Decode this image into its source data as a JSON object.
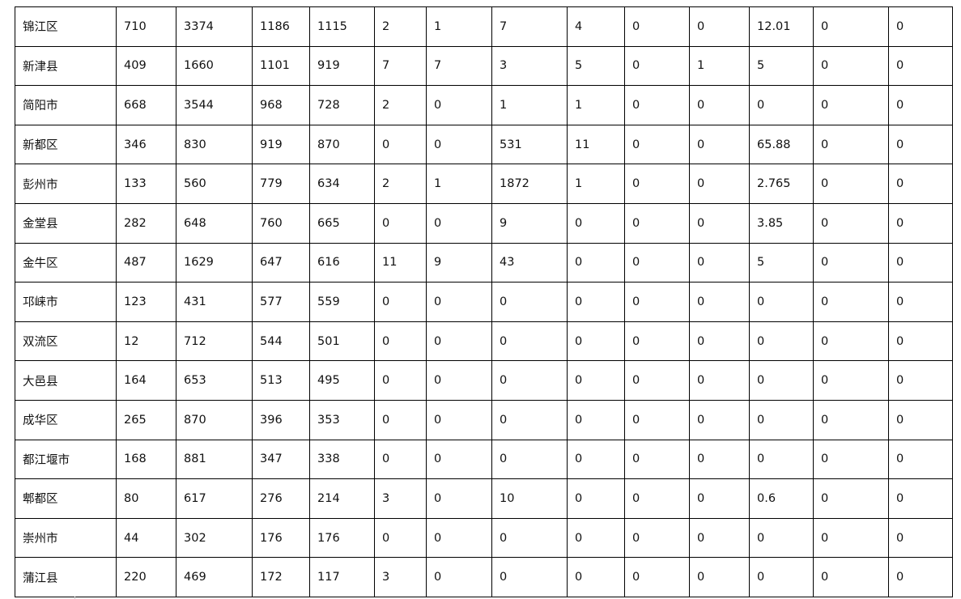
{
  "table": {
    "rows": [
      [
        "锦江区",
        "710",
        "3374",
        "1186",
        "1115",
        "2",
        "1",
        "7",
        "4",
        "0",
        "0",
        "12.01",
        "0",
        "0"
      ],
      [
        "新津县",
        "409",
        "1660",
        "1101",
        "919",
        "7",
        "7",
        "3",
        "5",
        "0",
        "1",
        "5",
        "0",
        "0"
      ],
      [
        "简阳市",
        "668",
        "3544",
        "968",
        "728",
        "2",
        "0",
        "1",
        "1",
        "0",
        "0",
        "0",
        "0",
        "0"
      ],
      [
        "新都区",
        "346",
        "830",
        "919",
        "870",
        "0",
        "0",
        "531",
        "11",
        "0",
        "0",
        "65.88",
        "0",
        "0"
      ],
      [
        "彭州市",
        "133",
        "560",
        "779",
        "634",
        "2",
        "1",
        "1872",
        "1",
        "0",
        "0",
        "2.765",
        "0",
        "0"
      ],
      [
        "金堂县",
        "282",
        "648",
        "760",
        "665",
        "0",
        "0",
        "9",
        "0",
        "0",
        "0",
        "3.85",
        "0",
        "0"
      ],
      [
        "金牛区",
        "487",
        "1629",
        "647",
        "616",
        "11",
        "9",
        "43",
        "0",
        "0",
        "0",
        "5",
        "0",
        "0"
      ],
      [
        "邛崃市",
        "123",
        "431",
        "577",
        "559",
        "0",
        "0",
        "0",
        "0",
        "0",
        "0",
        "0",
        "0",
        "0"
      ],
      [
        "双流区",
        "12",
        "712",
        "544",
        "501",
        "0",
        "0",
        "0",
        "0",
        "0",
        "0",
        "0",
        "0",
        "0"
      ],
      [
        "大邑县",
        "164",
        "653",
        "513",
        "495",
        "0",
        "0",
        "0",
        "0",
        "0",
        "0",
        "0",
        "0",
        "0"
      ],
      [
        "成华区",
        "265",
        "870",
        "396",
        "353",
        "0",
        "0",
        "0",
        "0",
        "0",
        "0",
        "0",
        "0",
        "0"
      ],
      [
        "都江堰市",
        "168",
        "881",
        "347",
        "338",
        "0",
        "0",
        "0",
        "0",
        "0",
        "0",
        "0",
        "0",
        "0"
      ],
      [
        "郫都区",
        "80",
        "617",
        "276",
        "214",
        "3",
        "0",
        "10",
        "0",
        "0",
        "0",
        "0.6",
        "0",
        "0"
      ],
      [
        "崇州市",
        "44",
        "302",
        "176",
        "176",
        "0",
        "0",
        "0",
        "0",
        "0",
        "0",
        "0",
        "0",
        "0"
      ],
      [
        "蒲江县",
        "220",
        "469",
        "172",
        "117",
        "3",
        "0",
        "0",
        "0",
        "0",
        "0",
        "0",
        "0",
        "0"
      ]
    ]
  }
}
